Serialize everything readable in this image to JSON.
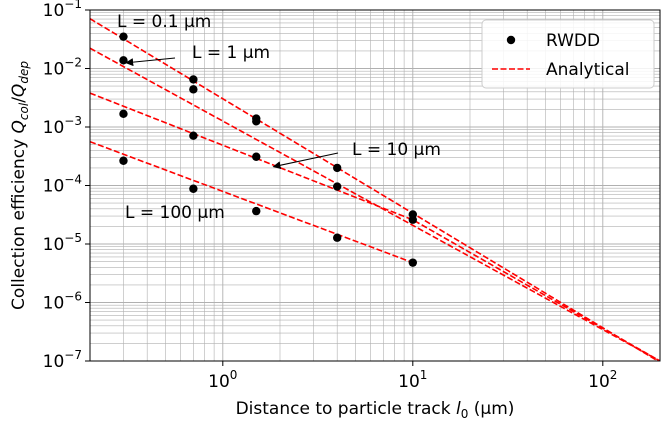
{
  "chart_data": {
    "type": "scatter",
    "xscale": "log",
    "yscale": "log",
    "xlim": [
      0.2,
      200
    ],
    "ylim": [
      1e-07,
      0.1
    ],
    "grid": true,
    "legend_position": "top-right",
    "xlabel": "Distance to particle track l0 (μm)",
    "ylabel": "Collection efficiency Qcol/Qdep",
    "x_ticks": [
      {
        "value": 1,
        "base": "10",
        "exp": "0"
      },
      {
        "value": 10,
        "base": "10",
        "exp": "1"
      },
      {
        "value": 100,
        "base": "10",
        "exp": "2"
      }
    ],
    "y_ticks": [
      {
        "value": 1e-07,
        "base": "10",
        "exp": "−7"
      },
      {
        "value": 1e-06,
        "base": "10",
        "exp": "−6"
      },
      {
        "value": 1e-05,
        "base": "10",
        "exp": "−5"
      },
      {
        "value": 0.0001,
        "base": "10",
        "exp": "−4"
      },
      {
        "value": 0.001,
        "base": "10",
        "exp": "−3"
      },
      {
        "value": 0.01,
        "base": "10",
        "exp": "−2"
      },
      {
        "value": 0.1,
        "base": "10",
        "exp": "−1"
      }
    ],
    "colors": {
      "markers": "#000000",
      "lines": "#ff0000",
      "grid": "#b0b0b0"
    },
    "series": [
      {
        "name": "RWDD",
        "style": "markers",
        "points": [
          {
            "x": 0.3,
            "y": 0.035
          },
          {
            "x": 0.3,
            "y": 0.0138
          },
          {
            "x": 0.3,
            "y": 0.00168
          },
          {
            "x": 0.3,
            "y": 0.000265
          },
          {
            "x": 0.7,
            "y": 0.0065
          },
          {
            "x": 0.7,
            "y": 0.0044
          },
          {
            "x": 0.7,
            "y": 0.00071
          },
          {
            "x": 0.7,
            "y": 8.8e-05
          },
          {
            "x": 1.5,
            "y": 0.00139
          },
          {
            "x": 1.5,
            "y": 0.00125
          },
          {
            "x": 1.5,
            "y": 0.00031
          },
          {
            "x": 1.5,
            "y": 3.65e-05
          },
          {
            "x": 4,
            "y": 0.0002
          },
          {
            "x": 4,
            "y": 9.6e-05
          },
          {
            "x": 4,
            "y": 1.28e-05
          },
          {
            "x": 10,
            "y": 3.2e-05
          },
          {
            "x": 10,
            "y": 2.6e-05
          },
          {
            "x": 10,
            "y": 4.8e-06
          }
        ]
      },
      {
        "name": "Analytical",
        "style": "dashed",
        "curves": [
          {
            "L": "0.1",
            "points": [
              {
                "x": 0.2,
                "y": 0.071
              },
              {
                "x": 195,
                "y": 1e-07
              }
            ]
          },
          {
            "L": "1",
            "points": [
              {
                "x": 0.2,
                "y": 0.0222
              },
              {
                "x": 200,
                "y": 1e-07
              }
            ]
          },
          {
            "L": "10",
            "points": [
              {
                "x": 0.2,
                "y": 0.0038
              },
              {
                "x": 10,
                "y": 2.59e-05
              },
              {
                "x": 200,
                "y": 1e-07
              }
            ]
          },
          {
            "L": "100",
            "points": [
              {
                "x": 0.2,
                "y": 0.00056
              },
              {
                "x": 10,
                "y": 4.8e-06
              }
            ]
          }
        ]
      }
    ],
    "annotations": [
      {
        "text": "L = 0.1 μm"
      },
      {
        "text": "L = 1 μm",
        "arrow_to": {
          "x": 0.31,
          "y": 0.0125
        }
      },
      {
        "text": "L = 10 μm",
        "arrow_to": {
          "x": 1.85,
          "y": 0.00021
        }
      },
      {
        "text": "L = 100 μm"
      }
    ]
  }
}
